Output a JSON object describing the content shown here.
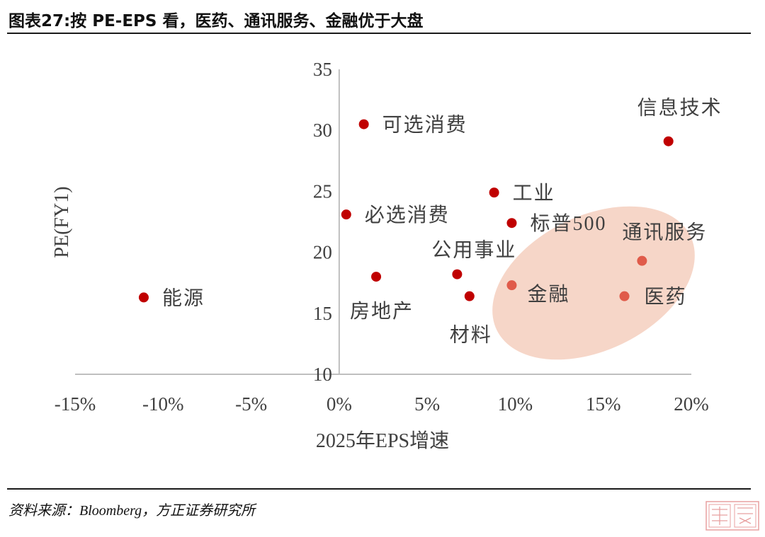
{
  "header": {
    "title": "图表27:按 PE-EPS 看，医药、通讯服务、金融优于大盘"
  },
  "footer": {
    "source": "资料来源：Bloomberg，方正证券研究所"
  },
  "colors": {
    "point": "#c00000",
    "highlight_point": "#e05b4a",
    "highlight_ellipse": "#f5d2c2",
    "axis": "#bfbfbf",
    "text": "#404040"
  },
  "chart_data": {
    "type": "scatter",
    "title": "",
    "xlabel": "2025年EPS增速",
    "ylabel": "PE(FY1)",
    "xlim": [
      -0.15,
      0.2
    ],
    "ylim": [
      10,
      35
    ],
    "x_ticks": [
      "-15%",
      "-10%",
      "-5%",
      "0%",
      "5%",
      "10%",
      "15%",
      "20%"
    ],
    "y_ticks": [
      "10",
      "15",
      "20",
      "25",
      "30",
      "35"
    ],
    "grid": false,
    "legend": "none",
    "points": [
      {
        "label": "能源",
        "x": -0.111,
        "y": 16.3,
        "highlight": false
      },
      {
        "label": "可选消费",
        "x": 0.014,
        "y": 30.5,
        "highlight": false
      },
      {
        "label": "必选消费",
        "x": 0.004,
        "y": 23.1,
        "highlight": false
      },
      {
        "label": "房地产",
        "x": 0.021,
        "y": 18.0,
        "highlight": false
      },
      {
        "label": "公用事业",
        "x": 0.067,
        "y": 18.2,
        "highlight": false
      },
      {
        "label": "材料",
        "x": 0.074,
        "y": 16.4,
        "highlight": false
      },
      {
        "label": "工业",
        "x": 0.088,
        "y": 24.9,
        "highlight": false
      },
      {
        "label": "标普500",
        "x": 0.098,
        "y": 22.4,
        "highlight": false
      },
      {
        "label": "金融",
        "x": 0.098,
        "y": 17.3,
        "highlight": true
      },
      {
        "label": "医药",
        "x": 0.162,
        "y": 16.4,
        "highlight": true
      },
      {
        "label": "通讯服务",
        "x": 0.172,
        "y": 19.3,
        "highlight": true
      },
      {
        "label": "信息技术",
        "x": 0.187,
        "y": 29.1,
        "highlight": false
      }
    ]
  }
}
